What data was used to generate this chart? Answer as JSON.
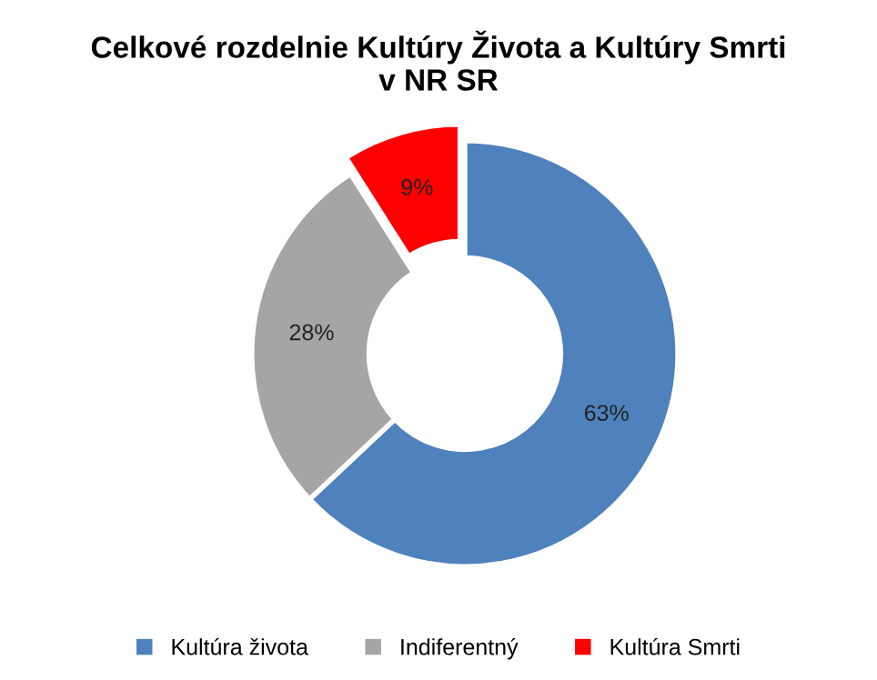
{
  "chart_data": {
    "type": "donut",
    "title": "Celkové rozdelnie Kultúry Života a Kultúry Smrti\nv NR SR",
    "categories": [
      "Kultúra života",
      "Indiferentný",
      "Kultúra Smrti"
    ],
    "values": [
      63,
      28,
      9
    ],
    "colors": [
      "#4f81bd",
      "#a5a5a5",
      "#ff0000"
    ],
    "value_labels": [
      "63%",
      "28%",
      "9%"
    ],
    "legend": "bottom"
  }
}
